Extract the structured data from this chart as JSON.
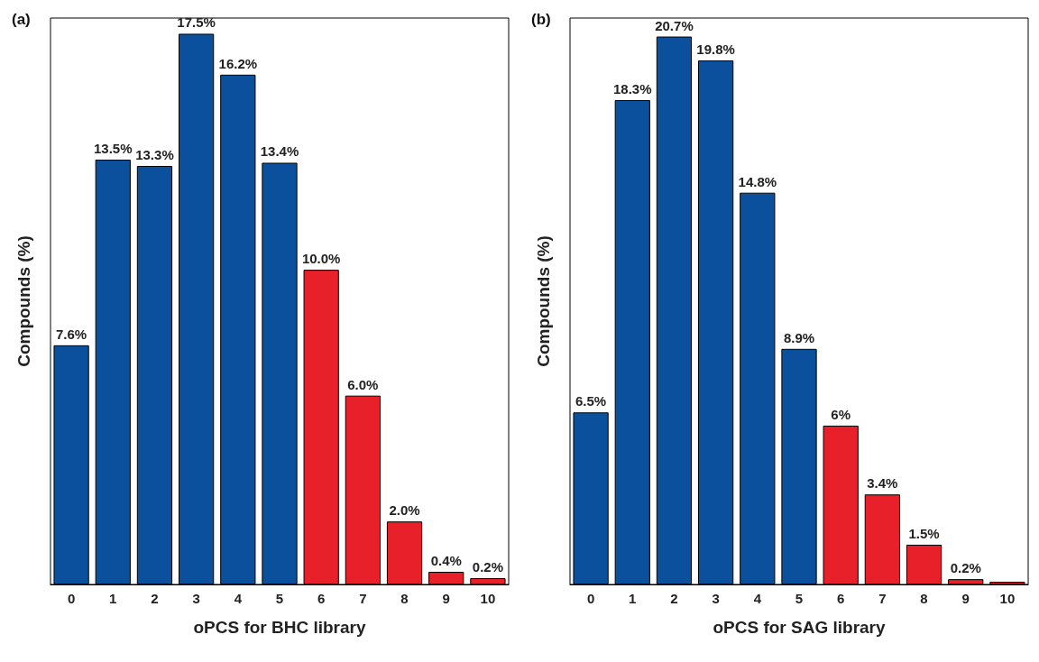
{
  "chart_data": [
    {
      "type": "bar",
      "title": "(a)",
      "xlabel": "oPCS for BHC library",
      "ylabel": "Compounds (%)",
      "categories": [
        "0",
        "1",
        "2",
        "3",
        "4",
        "5",
        "6",
        "7",
        "8",
        "9",
        "10"
      ],
      "values": [
        7.6,
        13.5,
        13.3,
        17.5,
        16.2,
        13.4,
        10.0,
        6.0,
        2.0,
        0.4,
        0.2
      ],
      "value_labels": [
        "7.6%",
        "13.5%",
        "13.3%",
        "17.5%",
        "16.2%",
        "13.4%",
        "10.0%",
        "6.0%",
        "2.0%",
        "0.4%",
        "0.2%"
      ],
      "colors": [
        "#0a509c",
        "#0a509c",
        "#0a509c",
        "#0a509c",
        "#0a509c",
        "#0a509c",
        "#e8202a",
        "#e8202a",
        "#e8202a",
        "#e8202a",
        "#e8202a"
      ],
      "ylim": [
        0,
        18
      ],
      "tick_labels": "x"
    },
    {
      "type": "bar",
      "title": "(b)",
      "xlabel": "oPCS for SAG library",
      "ylabel": "Compounds (%)",
      "categories": [
        "0",
        "1",
        "2",
        "3",
        "4",
        "5",
        "6",
        "7",
        "8",
        "9",
        "10"
      ],
      "values": [
        6.5,
        18.3,
        20.7,
        19.8,
        14.8,
        8.9,
        6,
        3.4,
        1.5,
        0.2,
        0.1
      ],
      "value_labels": [
        "6.5%",
        "18.3%",
        "20.7%",
        "19.8%",
        "14.8%",
        "8.9%",
        "6%",
        "3.4%",
        "1.5%",
        "0.2%",
        null
      ],
      "colors": [
        "#0a509c",
        "#0a509c",
        "#0a509c",
        "#0a509c",
        "#0a509c",
        "#0a509c",
        "#e8202a",
        "#e8202a",
        "#e8202a",
        "#e8202a",
        "#e8202a"
      ],
      "ylim": [
        0,
        21.4
      ],
      "tick_labels": "x"
    }
  ]
}
